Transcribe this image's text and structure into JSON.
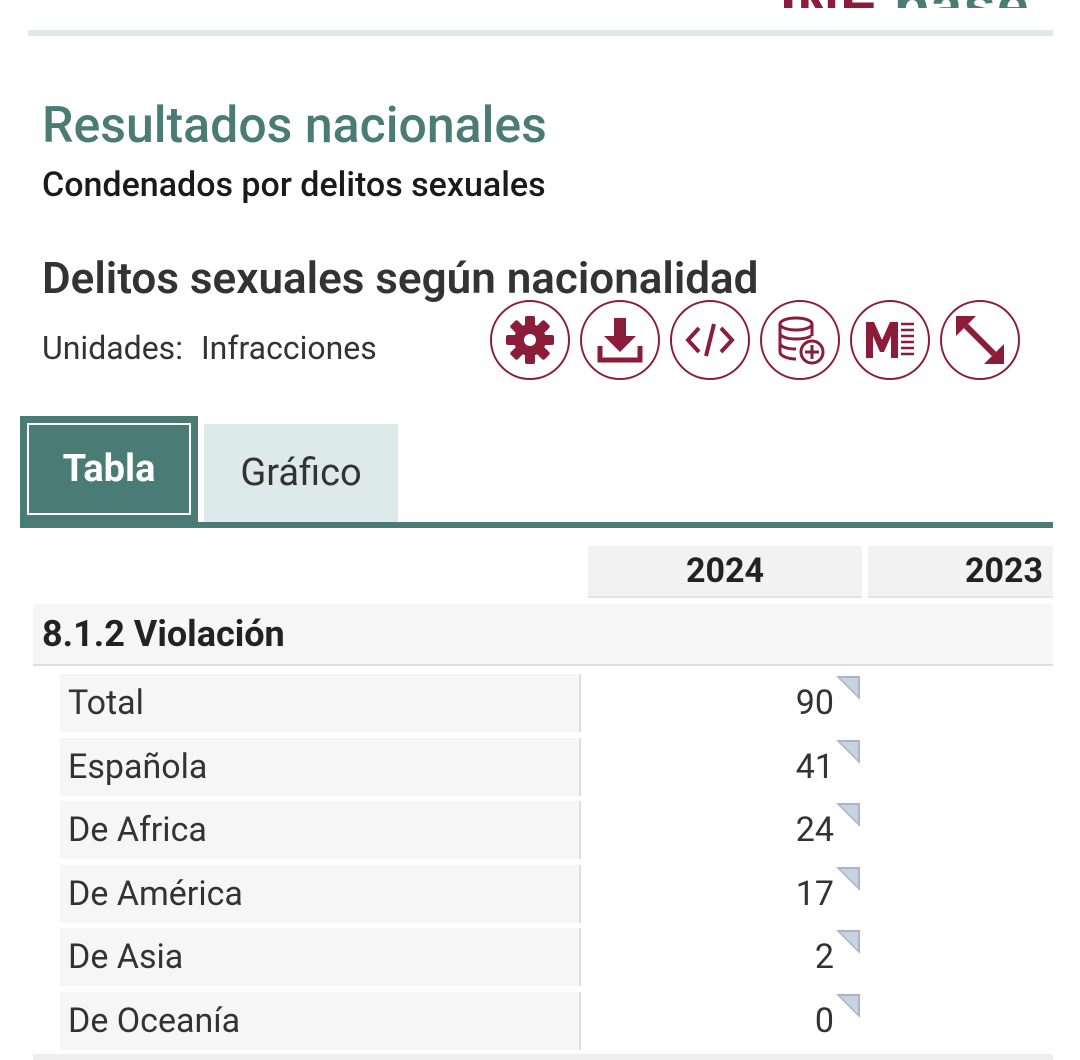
{
  "brand": {
    "part1": "INE",
    "part2": "base"
  },
  "header": {
    "title": "Resultados nacionales",
    "subtitle": "Condenados por delitos sexuales"
  },
  "table_info": {
    "heading": "Delitos sexuales según nacionalidad",
    "units_label": "Unidades:",
    "units_value": "Infracciones"
  },
  "toolbar": [
    {
      "icon": "gear-icon"
    },
    {
      "icon": "download-icon"
    },
    {
      "icon": "code-icon"
    },
    {
      "icon": "database-add-icon"
    },
    {
      "icon": "metadata-icon"
    },
    {
      "icon": "expand-icon"
    }
  ],
  "tabs": [
    {
      "label": "Tabla",
      "active": true
    },
    {
      "label": "Gráfico",
      "active": false
    }
  ],
  "columns": [
    "2024",
    "2023"
  ],
  "group": "8.1.2 Violación",
  "rows": [
    {
      "label": "Total",
      "v2024": "90"
    },
    {
      "label": "Española",
      "v2024": "41"
    },
    {
      "label": "De Africa",
      "v2024": "24"
    },
    {
      "label": "De América",
      "v2024": "17"
    },
    {
      "label": "De Asia",
      "v2024": "2"
    },
    {
      "label": "De Oceanía",
      "v2024": "0"
    }
  ],
  "colors": {
    "accent": "#8b1d3a",
    "teal": "#4a7c75",
    "teal_light": "#dcebe9"
  }
}
